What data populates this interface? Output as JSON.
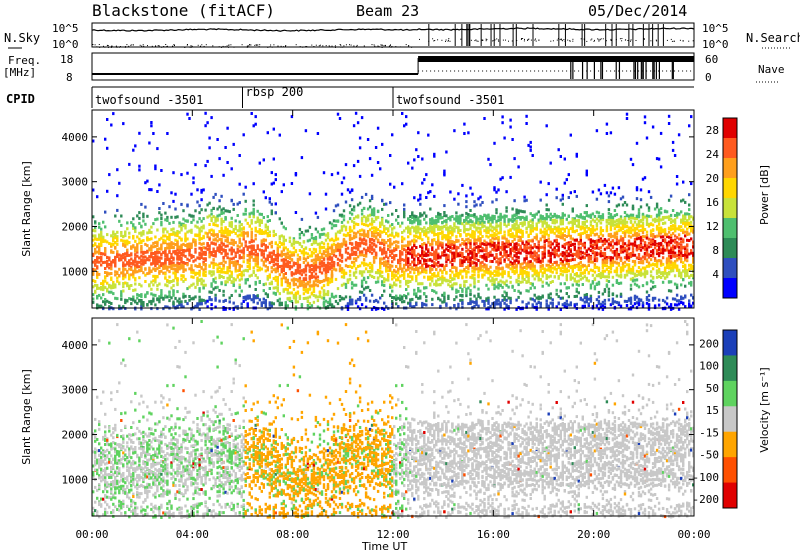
{
  "header": {
    "station": "Blackstone (fitACF)",
    "beam": "Beam 23",
    "date": "05/Dec/2014"
  },
  "labels": {
    "nsky": "N.Sky",
    "freq_line1": "Freq.",
    "freq_line2": "[MHz]",
    "cpid": "CPID",
    "nsearch": "N.Search",
    "nave": "Nave",
    "nsky_top": "10^5",
    "nsky_bottom": "10^0",
    "nsearch_top": "10^5",
    "nsearch_bottom": "10^0",
    "freq_top": "18",
    "freq_bottom": "8",
    "nave_top": "60",
    "nave_bottom": "0"
  },
  "cpid_segments": [
    {
      "label": "twofsound -3501",
      "start_h": 0,
      "end_h": 6
    },
    {
      "label": "rbsp 200",
      "start_h": 6,
      "end_h": 12
    },
    {
      "label": "twofsound -3501",
      "start_h": 12,
      "end_h": 24
    }
  ],
  "chart_data": [
    {
      "type": "heatmap",
      "name": "power",
      "ylabel": "Slant Range [km]",
      "xlabel": "Time UT",
      "x_ticks": [
        "00:00",
        "04:00",
        "08:00",
        "12:00",
        "16:00",
        "20:00",
        "00:00"
      ],
      "xlim_hours": [
        0,
        24
      ],
      "y_ticks": [
        1000,
        2000,
        3000,
        4000
      ],
      "ylim": [
        180,
        4600
      ],
      "colorbar": {
        "label": "Power [dB]",
        "ticks": [
          4,
          8,
          12,
          16,
          20,
          24,
          28
        ],
        "range": [
          0,
          30
        ]
      }
    },
    {
      "type": "heatmap",
      "name": "velocity",
      "ylabel": "Slant Range [km]",
      "xlabel": "Time UT",
      "x_ticks": [
        "00:00",
        "04:00",
        "08:00",
        "12:00",
        "16:00",
        "20:00",
        "00:00"
      ],
      "xlim_hours": [
        0,
        24
      ],
      "y_ticks": [
        1000,
        2000,
        3000,
        4000
      ],
      "ylim": [
        180,
        4600
      ],
      "colorbar": {
        "label": "Velocity [m s⁻¹]",
        "ticks": [
          "200",
          "100",
          "50",
          "15",
          "-15",
          "-50",
          "-100",
          "-200"
        ]
      }
    }
  ],
  "colors": {
    "power_scale": [
      "#0000ff",
      "#2f4fbf",
      "#2e8b57",
      "#4fbf6f",
      "#c8e23a",
      "#ffd700",
      "#ff9f1c",
      "#ff5a1f",
      "#e00000"
    ],
    "velocity_scale": [
      "#1b3fb8",
      "#2e8b57",
      "#5fd35f",
      "#c8c8c8",
      "#ffa500",
      "#ff5000",
      "#e00000"
    ]
  },
  "axis_titles": {
    "power_cb": "Power [dB]",
    "velocity_cb": "Velocity [m s⁻¹]",
    "x_label": "Time UT",
    "y_label": "Slant Range [km]"
  }
}
